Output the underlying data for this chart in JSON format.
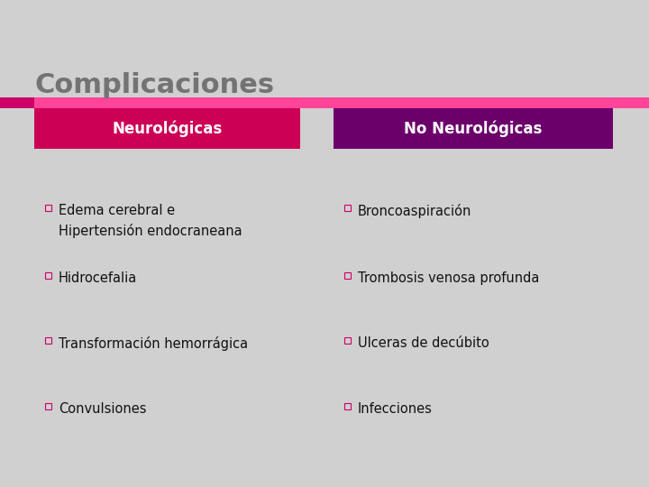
{
  "title": "Complicaciones",
  "title_color": "#737373",
  "background_color": "#D0D0D0",
  "bar_left_color": "#CC0066",
  "bar_right_color": "#FF4499",
  "left_header": "Neurológicas",
  "right_header": "No Neurológicas",
  "left_header_bg": "#CC0055",
  "right_header_bg": "#6B006B",
  "left_items": [
    "Edema cerebral e\nHipertensión endocraneana",
    "Hidrocefalia",
    "Transformación hemorrágica",
    "Convulsiones"
  ],
  "right_items": [
    "Broncoaspiración",
    "Trombosis venosa profunda",
    "Ulceras de decúbito",
    "Infecciones"
  ],
  "item_text_color": "#111111",
  "header_text_color": "#FFFFFF",
  "bullet_edge_color": "#CC0066",
  "title_fontsize": 22,
  "header_fontsize": 12,
  "item_fontsize": 10.5
}
